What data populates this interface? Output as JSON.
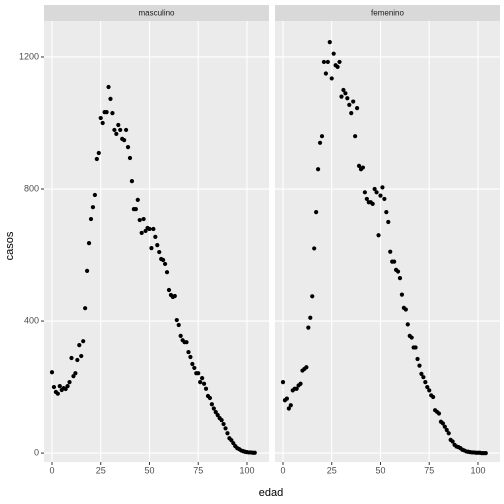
{
  "chart_data": {
    "type": "scatter",
    "xlabel": "edad",
    "ylabel": "casos",
    "x": [
      0,
      1,
      2,
      3,
      4,
      5,
      6,
      7,
      8,
      9,
      10,
      11,
      12,
      13,
      14,
      15,
      16,
      17,
      18,
      19,
      20,
      21,
      22,
      23,
      24,
      25,
      26,
      27,
      28,
      29,
      30,
      31,
      32,
      33,
      34,
      35,
      36,
      37,
      38,
      39,
      40,
      41,
      42,
      43,
      44,
      45,
      46,
      47,
      48,
      49,
      50,
      51,
      52,
      53,
      54,
      55,
      56,
      57,
      58,
      59,
      60,
      61,
      62,
      63,
      64,
      65,
      66,
      67,
      68,
      69,
      70,
      71,
      72,
      73,
      74,
      75,
      76,
      77,
      78,
      79,
      80,
      81,
      82,
      83,
      84,
      85,
      86,
      87,
      88,
      89,
      90,
      91,
      92,
      93,
      94,
      95,
      96,
      97,
      98,
      99,
      100,
      101,
      102,
      103,
      104
    ],
    "series": [
      {
        "name": "masculino",
        "color": "#000000",
        "values": [
          245,
          200,
          185,
          180,
          203,
          191,
          197,
          194,
          203,
          215,
          288,
          233,
          242,
          282,
          327,
          294,
          339,
          439,
          552,
          636,
          709,
          745,
          782,
          891,
          909,
          1015,
          1000,
          1033,
          1033,
          1109,
          1073,
          1030,
          979,
          967,
          994,
          979,
          952,
          948,
          979,
          927,
          894,
          824,
          739,
          739,
          767,
          706,
          667,
          709,
          673,
          682,
          679,
          621,
          679,
          655,
          630,
          609,
          588,
          585,
          573,
          548,
          494,
          479,
          473,
          476,
          403,
          388,
          355,
          342,
          336,
          336,
          306,
          291,
          270,
          258,
          242,
          242,
          215,
          227,
          210,
          195,
          173,
          167,
          148,
          135,
          124,
          115,
          106,
          100,
          88,
          75,
          60,
          45,
          39,
          30,
          21,
          15,
          12,
          8,
          6,
          4,
          3,
          2,
          2,
          1,
          1
        ]
      },
      {
        "name": "femenino",
        "color": "#000000",
        "values": [
          215,
          160,
          165,
          135,
          145,
          190,
          195,
          195,
          205,
          210,
          250,
          255,
          260,
          380,
          410,
          475,
          620,
          730,
          860,
          940,
          960,
          1185,
          1150,
          1185,
          1245,
          1135,
          1210,
          1175,
          1170,
          1185,
          1080,
          1100,
          1090,
          1075,
          1055,
          1030,
          1065,
          960,
          1045,
          870,
          860,
          865,
          790,
          770,
          760,
          760,
          755,
          800,
          790,
          660,
          780,
          805,
          770,
          730,
          700,
          610,
          580,
          580,
          555,
          550,
          530,
          480,
          440,
          435,
          390,
          355,
          350,
          320,
          320,
          285,
          265,
          240,
          230,
          215,
          200,
          190,
          175,
          170,
          130,
          125,
          120,
          95,
          90,
          80,
          70,
          60,
          40,
          35,
          25,
          20,
          18,
          15,
          10,
          8,
          5,
          4,
          3,
          2,
          2,
          1,
          1,
          1,
          0,
          0,
          0
        ]
      }
    ],
    "xlim": [
      -4.1,
      111.3
    ],
    "ylim": [
      -27,
      1309
    ],
    "xticks": [
      0,
      25,
      50,
      75,
      100
    ],
    "yticks": [
      0,
      400,
      800,
      1200
    ],
    "grid": true
  }
}
